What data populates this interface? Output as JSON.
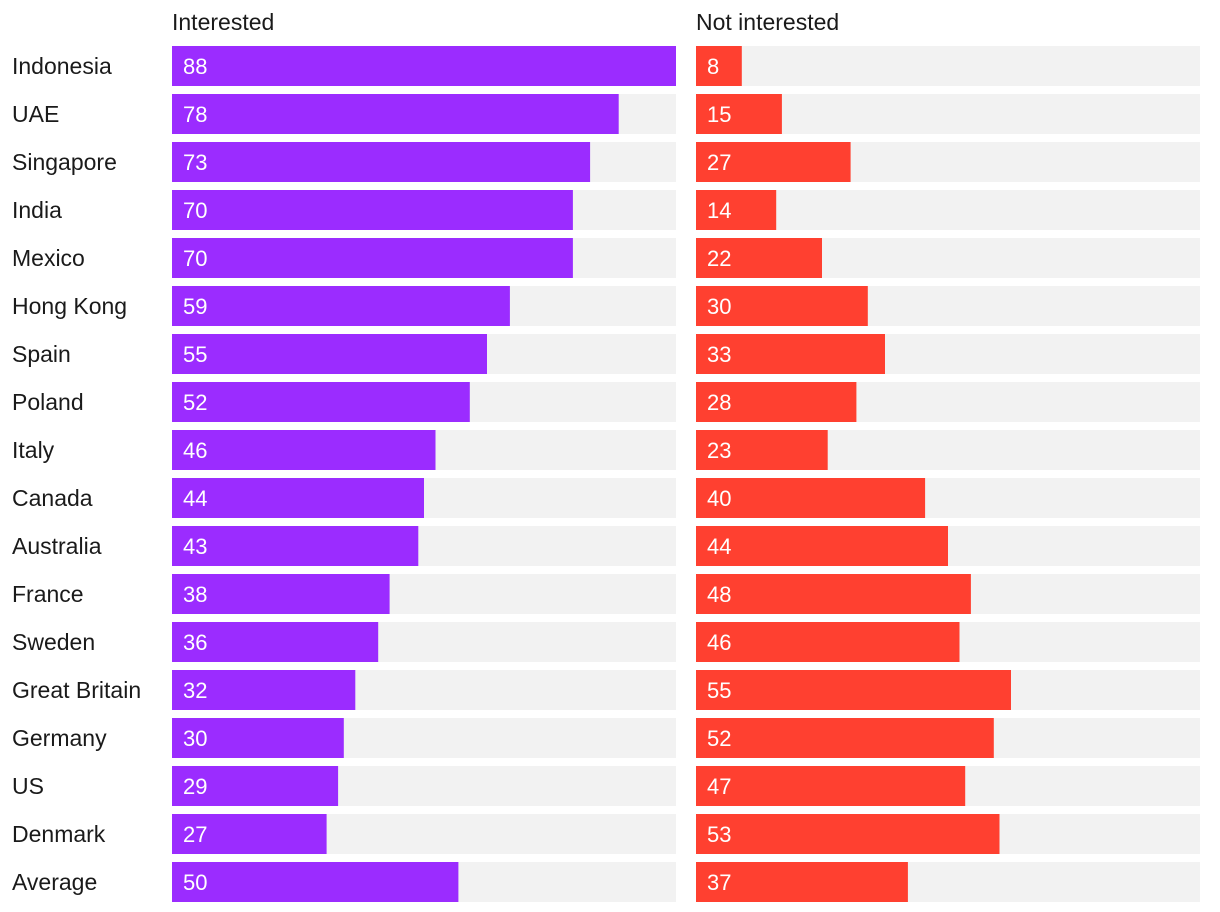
{
  "chart_data": {
    "type": "bar",
    "orientation": "horizontal",
    "title": "",
    "categories": [
      "Indonesia",
      "UAE",
      "Singapore",
      "India",
      "Mexico",
      "Hong Kong",
      "Spain",
      "Poland",
      "Italy",
      "Canada",
      "Australia",
      "France",
      "Sweden",
      "Great Britain",
      "Germany",
      "US",
      "Denmark",
      "Average"
    ],
    "series": [
      {
        "name": "Interested",
        "color": "#9b2cff",
        "values": [
          88,
          78,
          73,
          70,
          70,
          59,
          55,
          52,
          46,
          44,
          43,
          38,
          36,
          32,
          30,
          29,
          27,
          50
        ]
      },
      {
        "name": "Not interested",
        "color": "#ff4030",
        "values": [
          8,
          15,
          27,
          14,
          22,
          30,
          33,
          28,
          23,
          40,
          44,
          48,
          46,
          55,
          52,
          47,
          53,
          37
        ]
      }
    ],
    "xlim": [
      0,
      88
    ],
    "track_color": "#f2f2f2",
    "grid": false
  }
}
